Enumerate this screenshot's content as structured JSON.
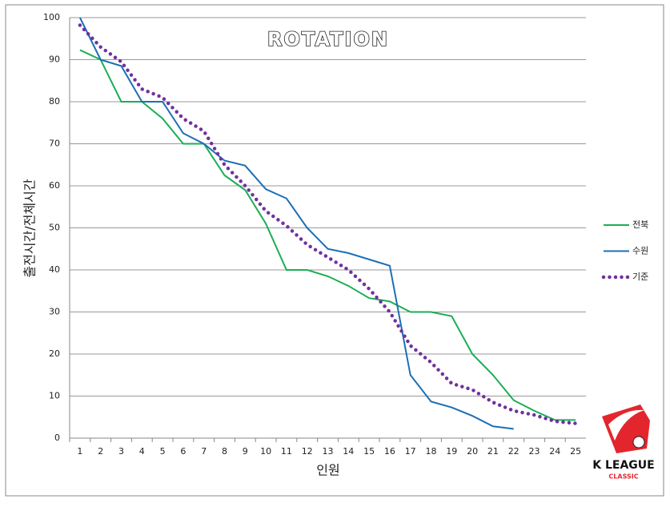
{
  "chart_data": {
    "type": "line",
    "title": "ROTATION",
    "y_label": "출전시간/전체시간",
    "x_label": "인원",
    "categories": [
      1,
      2,
      3,
      4,
      5,
      6,
      7,
      8,
      9,
      10,
      11,
      12,
      13,
      14,
      15,
      16,
      17,
      18,
      19,
      20,
      21,
      22,
      23,
      24,
      25
    ],
    "series": [
      {
        "name": "전북",
        "color": "#1aaf54",
        "style": "solid",
        "values": [
          92.3,
          90,
          80,
          80,
          76,
          70,
          70,
          62.5,
          59,
          51,
          40,
          40,
          38.5,
          36.2,
          33.3,
          32.5,
          30,
          30,
          29,
          20,
          15,
          9,
          6.5,
          4.3,
          4.3
        ]
      },
      {
        "name": "수원",
        "color": "#1c6fb6",
        "style": "solid",
        "values": [
          100,
          90,
          88.5,
          80,
          80,
          72.5,
          70,
          66,
          64.8,
          59.2,
          57,
          50,
          45,
          44,
          42.5,
          41,
          15,
          8.7,
          7.3,
          5.3,
          2.8,
          2.2,
          null,
          null,
          null
        ]
      },
      {
        "name": "기준",
        "color": "#7030a0",
        "style": "dotted",
        "values": [
          98.2,
          93,
          89.5,
          83,
          81,
          76,
          73,
          65,
          60,
          54,
          50.5,
          46,
          43,
          40,
          35.5,
          30,
          22,
          18,
          13,
          11.5,
          8.5,
          6.5,
          5.5,
          4,
          3.5
        ]
      }
    ],
    "ylim": [
      0,
      100
    ],
    "yticks": [
      0,
      10,
      20,
      30,
      40,
      50,
      60,
      70,
      80,
      90,
      100
    ],
    "grid": true,
    "legend": "right",
    "logo": {
      "text": "K LEAGUE",
      "subtext": "CLASSIC"
    }
  }
}
